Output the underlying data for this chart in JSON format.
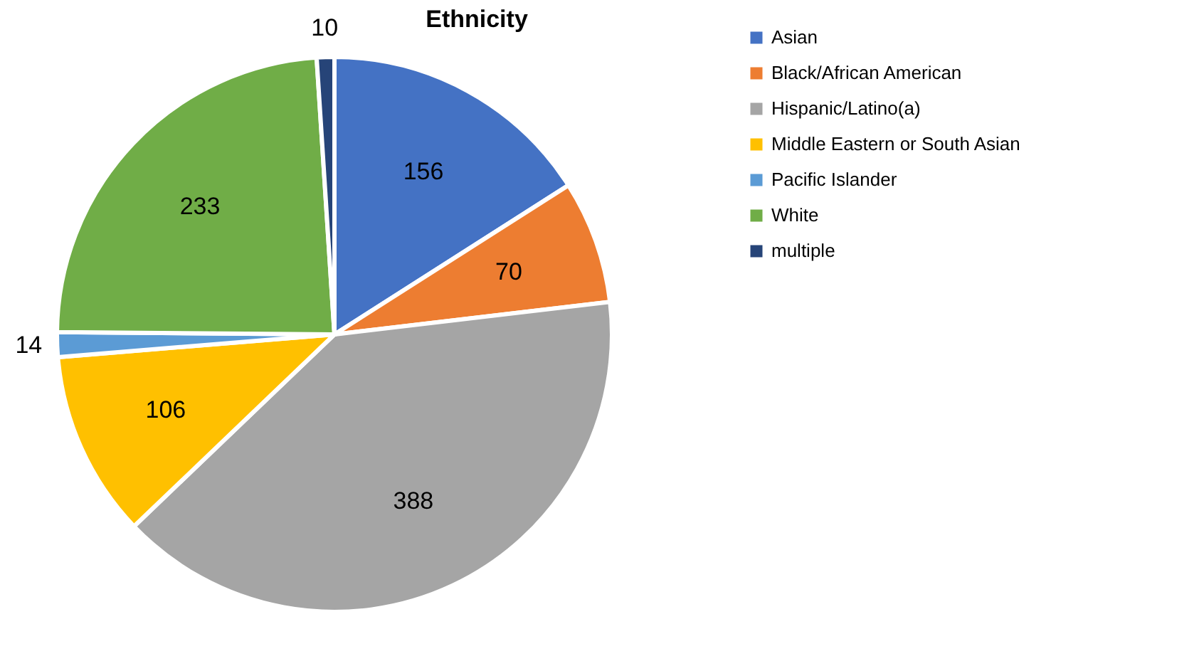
{
  "chart_data": {
    "type": "pie",
    "title": "Ethnicity",
    "categories": [
      "Asian",
      "Black/African American",
      "Hispanic/Latino(a)",
      "Middle Eastern or South Asian",
      "Pacific Islander",
      "White",
      "multiple"
    ],
    "values": [
      156,
      70,
      388,
      106,
      14,
      233,
      10
    ],
    "colors": [
      "#4472c4",
      "#ed7d31",
      "#a5a5a5",
      "#ffc000",
      "#5b9bd5",
      "#70ad47",
      "#264478"
    ],
    "data_labels": true,
    "legend": "right"
  }
}
